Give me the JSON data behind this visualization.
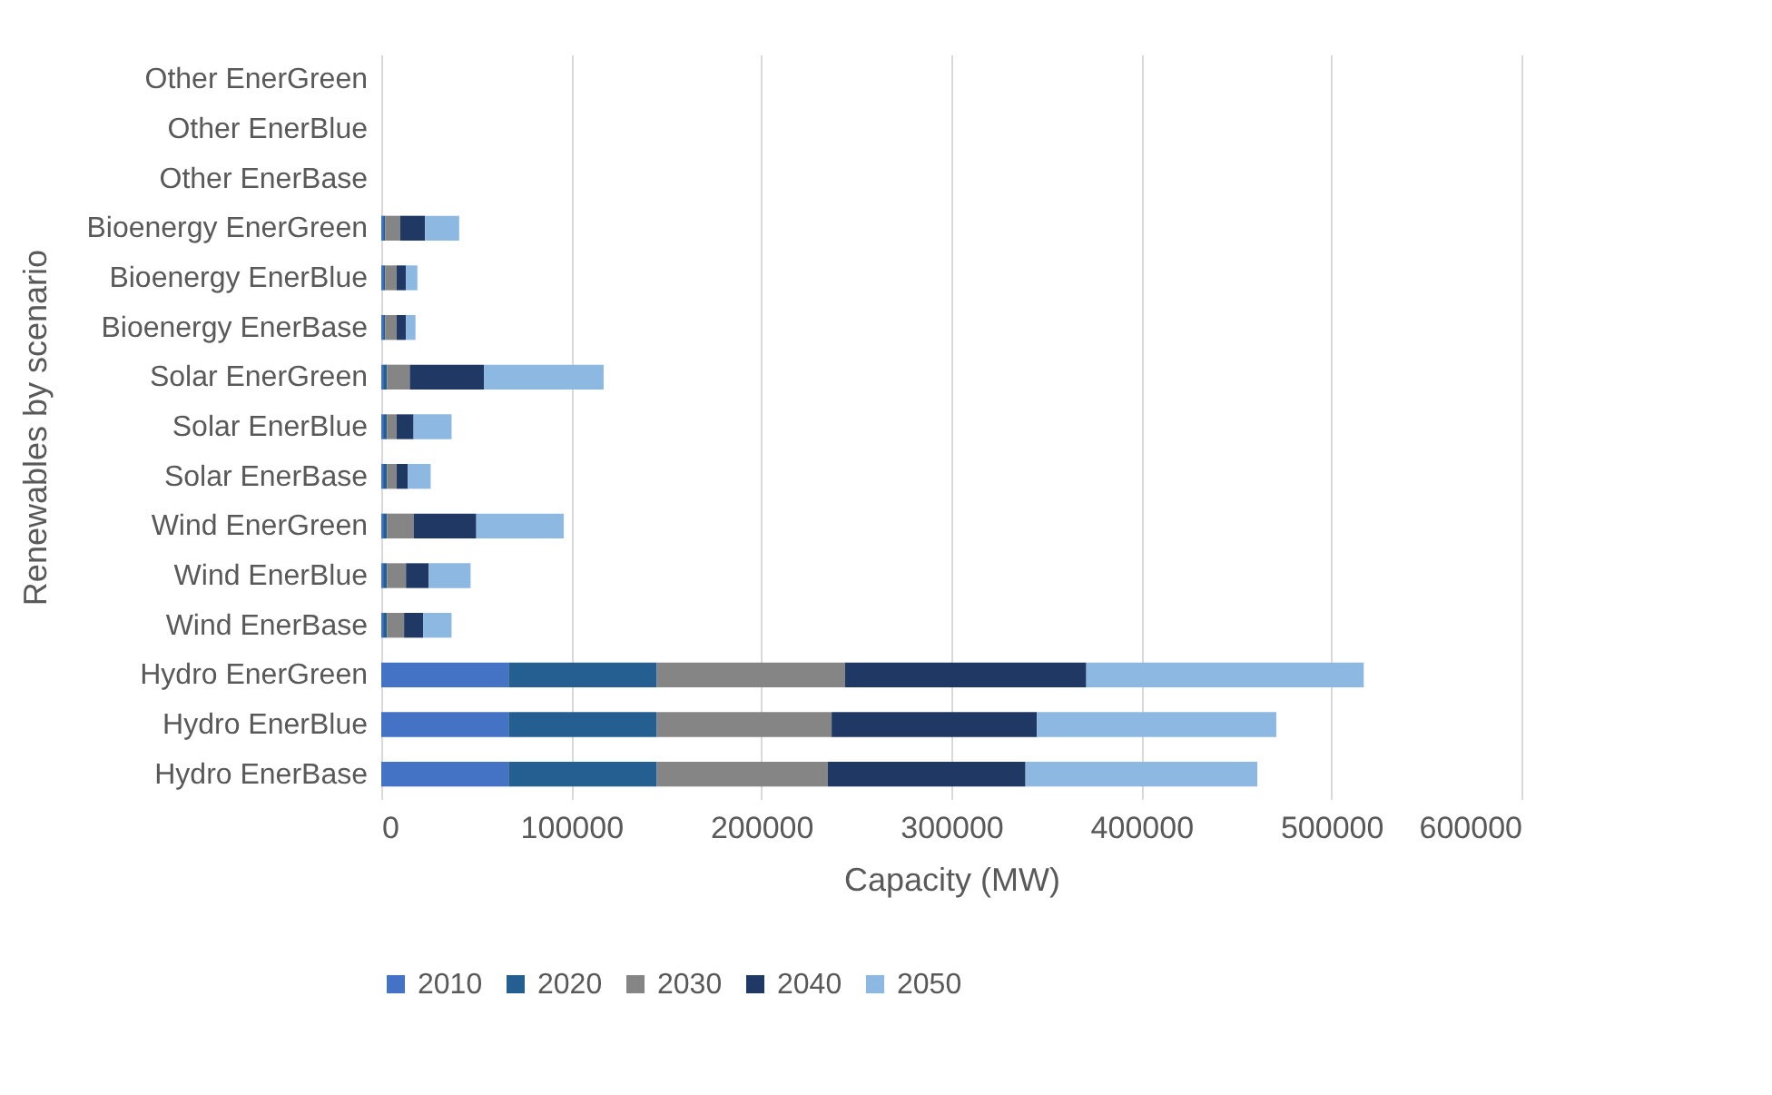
{
  "chart_data": {
    "type": "bar",
    "orientation": "horizontal",
    "stacked": true,
    "xlabel": "Capacity (MW)",
    "ylabel": "Renewables by scenario",
    "categories": [
      "Other EnerGreen",
      "Other EnerBlue",
      "Other EnerBase",
      "Bioenergy  EnerGreen",
      "Bioenergy EnerBlue",
      "Bioenergy EnerBase",
      "Solar EnerGreen",
      "Solar EnerBlue",
      "Solar EnerBase",
      "Wind EnerGreen",
      "Wind EnerBlue",
      "Wind EnerBase",
      "Hydro EnerGreen",
      "Hydro EnerBlue",
      "Hydro EnerBase"
    ],
    "series": [
      {
        "name": "2010",
        "color": "#4472c4",
        "values": [
          0,
          0,
          0,
          1000,
          1000,
          1000,
          1000,
          1000,
          1000,
          1000,
          1000,
          1000,
          67000,
          67000,
          67000
        ]
      },
      {
        "name": "2020",
        "color": "#255e91",
        "values": [
          0,
          0,
          0,
          1000,
          1000,
          1000,
          2000,
          2000,
          2000,
          2000,
          2000,
          2000,
          78000,
          78000,
          78000
        ]
      },
      {
        "name": "2030",
        "color": "#858585",
        "values": [
          0,
          0,
          0,
          8000,
          6000,
          6000,
          12000,
          5000,
          5000,
          14000,
          10000,
          9000,
          99000,
          92000,
          90000
        ]
      },
      {
        "name": "2040",
        "color": "#203864",
        "values": [
          0,
          0,
          0,
          13000,
          5000,
          5000,
          39000,
          9000,
          6000,
          33000,
          12000,
          10000,
          127000,
          108000,
          104000
        ]
      },
      {
        "name": "2050",
        "color": "#8cb8e2",
        "values": [
          0,
          0,
          0,
          18000,
          6000,
          5000,
          63000,
          20000,
          12000,
          46000,
          22000,
          15000,
          146000,
          126000,
          122000
        ]
      }
    ],
    "xlim": [
      0,
      600000
    ],
    "xticks": [
      0,
      100000,
      200000,
      300000,
      400000,
      500000,
      600000
    ],
    "grid": "x",
    "legend": "bottom"
  }
}
